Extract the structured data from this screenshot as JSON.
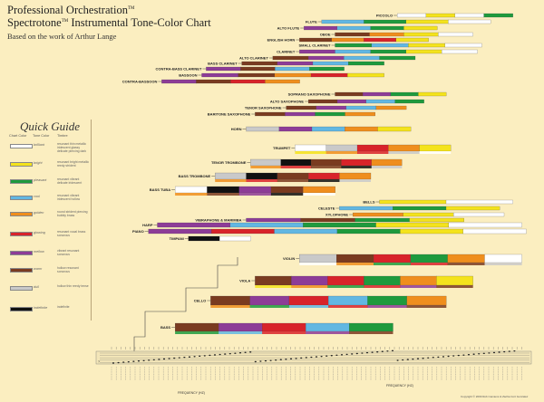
{
  "header": {
    "title_main": "Professional Orchestration",
    "title_sup": "TM",
    "subtitle_main": "Spectrotone",
    "subtitle_sup": "TM",
    "subtitle_rest": " Instrumental Tone-Color Chart",
    "credit": "Based on the work of Arthur Lange"
  },
  "guide": {
    "title": "Quick Guide",
    "col_chart": "Chart Color",
    "col_tone": "Tone Color",
    "col_timbre": "Timbre",
    "entries": [
      {
        "color": "#ffffff",
        "tone": "brilliant",
        "desc": "resonant thin metallic iridescent glassy delicate piercing dark"
      },
      {
        "color": "#f4e31c",
        "tone": "bright",
        "desc": "resonant bright metallic reedy strident"
      },
      {
        "color": "#1e9a3d",
        "tone": "pleasant",
        "desc": "resonant vibrant delicate iridescent"
      },
      {
        "color": "#62b7e2",
        "tone": "cool",
        "desc": "resonant vibrant iridescent hollow"
      },
      {
        "color": "#ef8e1d",
        "tone": "golden",
        "desc": "round strident piercing bubbly brass"
      },
      {
        "color": "#d8232a",
        "tone": "glowing",
        "desc": "resonant vocal brass sonorous"
      },
      {
        "color": "#8d3c97",
        "tone": "mellow",
        "desc": "vibrant resonant sonorous"
      },
      {
        "color": "#7a3b20",
        "tone": "warm",
        "desc": "hollow resonant sonorous"
      },
      {
        "color": "#c9c9c9",
        "tone": "dull",
        "desc": "hollow thin reedy tense"
      },
      {
        "color": "#111111",
        "tone": "indefinite",
        "desc": "indefinite"
      }
    ]
  },
  "colors": {
    "white": "#ffffff",
    "yellow": "#f4e31c",
    "green": "#1e9a3d",
    "blue": "#62b7e2",
    "orange": "#ef8e1d",
    "red": "#d8232a",
    "purple": "#8d3c97",
    "brown": "#7a3b20",
    "gray": "#c9c9c9",
    "black": "#111111"
  },
  "instruments": [
    {
      "name": "PICCOLO",
      "start": 0.69,
      "end": 0.95,
      "colors": [
        "white",
        "yellow",
        "white",
        "green"
      ]
    },
    {
      "name": "FLUTE",
      "start": 0.52,
      "end": 0.9,
      "colors": [
        "blue",
        "green",
        "yellow",
        "white"
      ]
    },
    {
      "name": "ALTO FLUTE",
      "start": 0.48,
      "end": 0.78,
      "colors": [
        "purple",
        "blue",
        "green",
        "yellow"
      ]
    },
    {
      "name": "OBOE",
      "start": 0.55,
      "end": 0.86,
      "colors": [
        "brown",
        "orange",
        "yellow",
        "white"
      ]
    },
    {
      "name": "ENGLISH HORN",
      "start": 0.47,
      "end": 0.76,
      "colors": [
        "brown",
        "orange",
        "red",
        "yellow"
      ]
    },
    {
      "name": "SMALL CLARINET",
      "start": 0.55,
      "end": 0.88,
      "colors": [
        "green",
        "blue",
        "yellow",
        "white"
      ]
    },
    {
      "name": "CLARINET",
      "start": 0.47,
      "end": 0.87,
      "colors": [
        "purple",
        "blue",
        "green",
        "yellow",
        "white"
      ]
    },
    {
      "name": "ALTO CLARINET",
      "start": 0.41,
      "end": 0.73,
      "colors": [
        "brown",
        "purple",
        "blue",
        "green"
      ]
    },
    {
      "name": "BASS CLARINET",
      "start": 0.34,
      "end": 0.66,
      "colors": [
        "brown",
        "purple",
        "blue",
        "green"
      ]
    },
    {
      "name": "CONTRA-BASS CLARINET",
      "start": 0.26,
      "end": 0.57,
      "colors": [
        "purple",
        "brown",
        "blue",
        "green"
      ]
    },
    {
      "name": "BASSOON",
      "start": 0.25,
      "end": 0.66,
      "colors": [
        "purple",
        "brown",
        "orange",
        "red",
        "yellow"
      ]
    },
    {
      "name": "CONTRA-BASSOON",
      "start": 0.16,
      "end": 0.47,
      "colors": [
        "purple",
        "brown",
        "red",
        "orange"
      ]
    },
    {
      "name": "SOPRANO SAXOPHONE",
      "start": 0.55,
      "end": 0.8,
      "colors": [
        "brown",
        "purple",
        "green",
        "yellow"
      ]
    },
    {
      "name": "ALTO SAXOPHONE",
      "start": 0.49,
      "end": 0.75,
      "colors": [
        "brown",
        "purple",
        "blue",
        "green"
      ]
    },
    {
      "name": "TENOR SAXOPHONE",
      "start": 0.44,
      "end": 0.71,
      "colors": [
        "brown",
        "purple",
        "blue",
        "orange"
      ]
    },
    {
      "name": "BARITONE SAXOPHONE",
      "start": 0.37,
      "end": 0.64,
      "colors": [
        "brown",
        "purple",
        "green",
        "orange"
      ]
    },
    {
      "name": "HORN",
      "start": 0.35,
      "end": 0.72,
      "colors": [
        "gray",
        "purple",
        "blue",
        "orange",
        "yellow"
      ]
    },
    {
      "name": "TRUMPET",
      "start": 0.46,
      "end": 0.81,
      "colors": [
        "white",
        "gray",
        "red",
        "orange",
        "yellow"
      ]
    },
    {
      "name": "TENOR TROMBONE",
      "start": 0.36,
      "end": 0.7,
      "colors": [
        "gray",
        "black",
        "brown",
        "red",
        "orange"
      ]
    },
    {
      "name": "BASS TROMBONE",
      "start": 0.28,
      "end": 0.63,
      "colors": [
        "gray",
        "black",
        "brown",
        "red",
        "orange"
      ]
    },
    {
      "name": "BASS TUBA",
      "start": 0.19,
      "end": 0.55,
      "colors": [
        "white",
        "black",
        "purple",
        "brown",
        "orange"
      ]
    },
    {
      "name": "BELLS",
      "start": 0.65,
      "end": 0.95,
      "colors": [
        "yellow",
        "white"
      ]
    },
    {
      "name": "CELESTE",
      "start": 0.56,
      "end": 0.92,
      "colors": [
        "blue",
        "green",
        "yellow"
      ]
    },
    {
      "name": "XYLOPHONE",
      "start": 0.59,
      "end": 0.93,
      "colors": [
        "orange",
        "yellow",
        "white"
      ]
    },
    {
      "name": "VIBRAPHONE & MARIMBA",
      "start": 0.35,
      "end": 0.84,
      "colors": [
        "purple",
        "brown",
        "green",
        "yellow"
      ]
    },
    {
      "name": "HARP",
      "start": 0.15,
      "end": 0.97,
      "colors": [
        "purple",
        "blue",
        "green",
        "yellow",
        "white"
      ]
    },
    {
      "name": "PIANO",
      "start": 0.13,
      "end": 0.98,
      "colors": [
        "purple",
        "red",
        "blue",
        "green",
        "yellow",
        "white"
      ]
    },
    {
      "name": "TIMPANI",
      "start": 0.22,
      "end": 0.36,
      "colors": [
        "black",
        "white"
      ]
    },
    {
      "name": "VIOLIN",
      "start": 0.47,
      "end": 0.97,
      "colors": [
        "gray",
        "brown",
        "red",
        "green",
        "orange",
        "white"
      ]
    },
    {
      "name": "VIOLA",
      "start": 0.37,
      "end": 0.86,
      "colors": [
        "brown",
        "purple",
        "red",
        "green",
        "orange",
        "yellow"
      ]
    },
    {
      "name": "CELLO",
      "start": 0.27,
      "end": 0.8,
      "colors": [
        "brown",
        "purple",
        "red",
        "blue",
        "green",
        "orange"
      ]
    },
    {
      "name": "BASS",
      "start": 0.19,
      "end": 0.68,
      "colors": [
        "brown",
        "purple",
        "red",
        "blue",
        "green"
      ]
    }
  ],
  "axis": {
    "label_left": "FREQUENCY (HZ)",
    "label_right": "FREQUENCY (HZ)",
    "copyright": "Copyright © 2009 Rob Camiens & Zacha Cort Gonzalez"
  }
}
